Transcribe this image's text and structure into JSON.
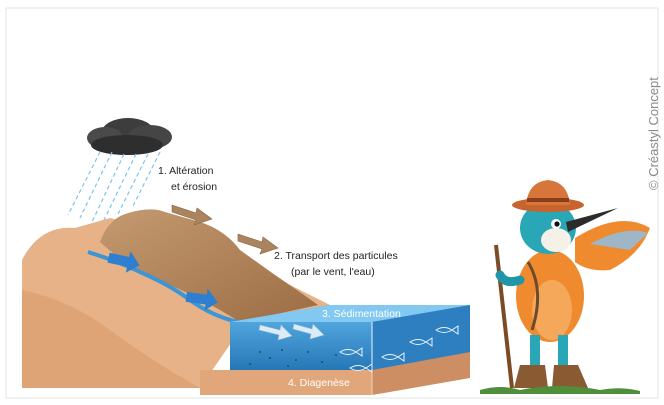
{
  "labels": {
    "step1_line1": "1.  Altération",
    "step1_line2": "et érosion",
    "step2_line1": "2.  Transport des particules",
    "step2_line2": "(par le vent, l'eau)",
    "step3": "3.  Sédimentation",
    "step4": "4.  Diagenèse"
  },
  "credit": "© Créastyl Concept",
  "icons": [
    "rain-cloud-icon",
    "wind-arrow-icon",
    "river-flow-arrow-icon",
    "fish-icon",
    "kingfisher-mascot-icon"
  ],
  "colors": {
    "rock_light": "#e8b48a",
    "rock_dark": "#c98a5a",
    "mountain": "#b98b62",
    "water": "#3a9ad9",
    "water_dark": "#1f5f95",
    "arrow": "#2f7fd0",
    "cloud": "#4a4a4a"
  }
}
